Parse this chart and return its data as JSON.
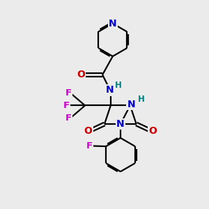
{
  "bg_color": "#ebebeb",
  "bond_color": "#000000",
  "bond_width": 1.6,
  "atom_colors": {
    "N": "#0000cc",
    "O": "#cc0000",
    "F": "#cc00cc",
    "H": "#008080",
    "C": "#000000"
  }
}
